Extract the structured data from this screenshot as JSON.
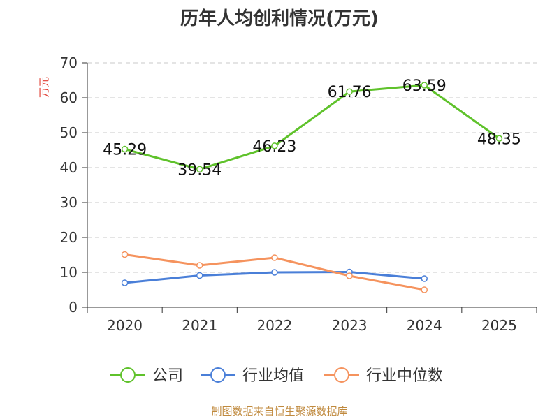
{
  "title": "历年人均创利情况(万元)",
  "footer": "制图数据来自恒生聚源数据库",
  "chart_data": {
    "type": "line",
    "title": "历年人均创利情况(万元)",
    "ylabel": "万元",
    "xlabel": "",
    "categories": [
      "2020",
      "2021",
      "2022",
      "2023",
      "2024",
      "2025"
    ],
    "ylim": [
      0,
      70
    ],
    "yticks": [
      0,
      10,
      20,
      30,
      40,
      50,
      60,
      70
    ],
    "grid": true,
    "legend_position": "bottom",
    "series": [
      {
        "name": "公司",
        "color": "#5fc22b",
        "values": [
          45.29,
          39.54,
          46.23,
          61.76,
          63.59,
          48.35
        ],
        "labels": [
          "45.29",
          "39.54",
          "46.23",
          "61.76",
          "63.59",
          "48.35"
        ]
      },
      {
        "name": "行业均值",
        "color": "#4a7fd8",
        "values": [
          7.0,
          9.1,
          10.0,
          10.1,
          8.2,
          null
        ]
      },
      {
        "name": "行业中位数",
        "color": "#f5935e",
        "values": [
          15.1,
          12.0,
          14.2,
          9.0,
          5.0,
          null
        ]
      }
    ]
  }
}
